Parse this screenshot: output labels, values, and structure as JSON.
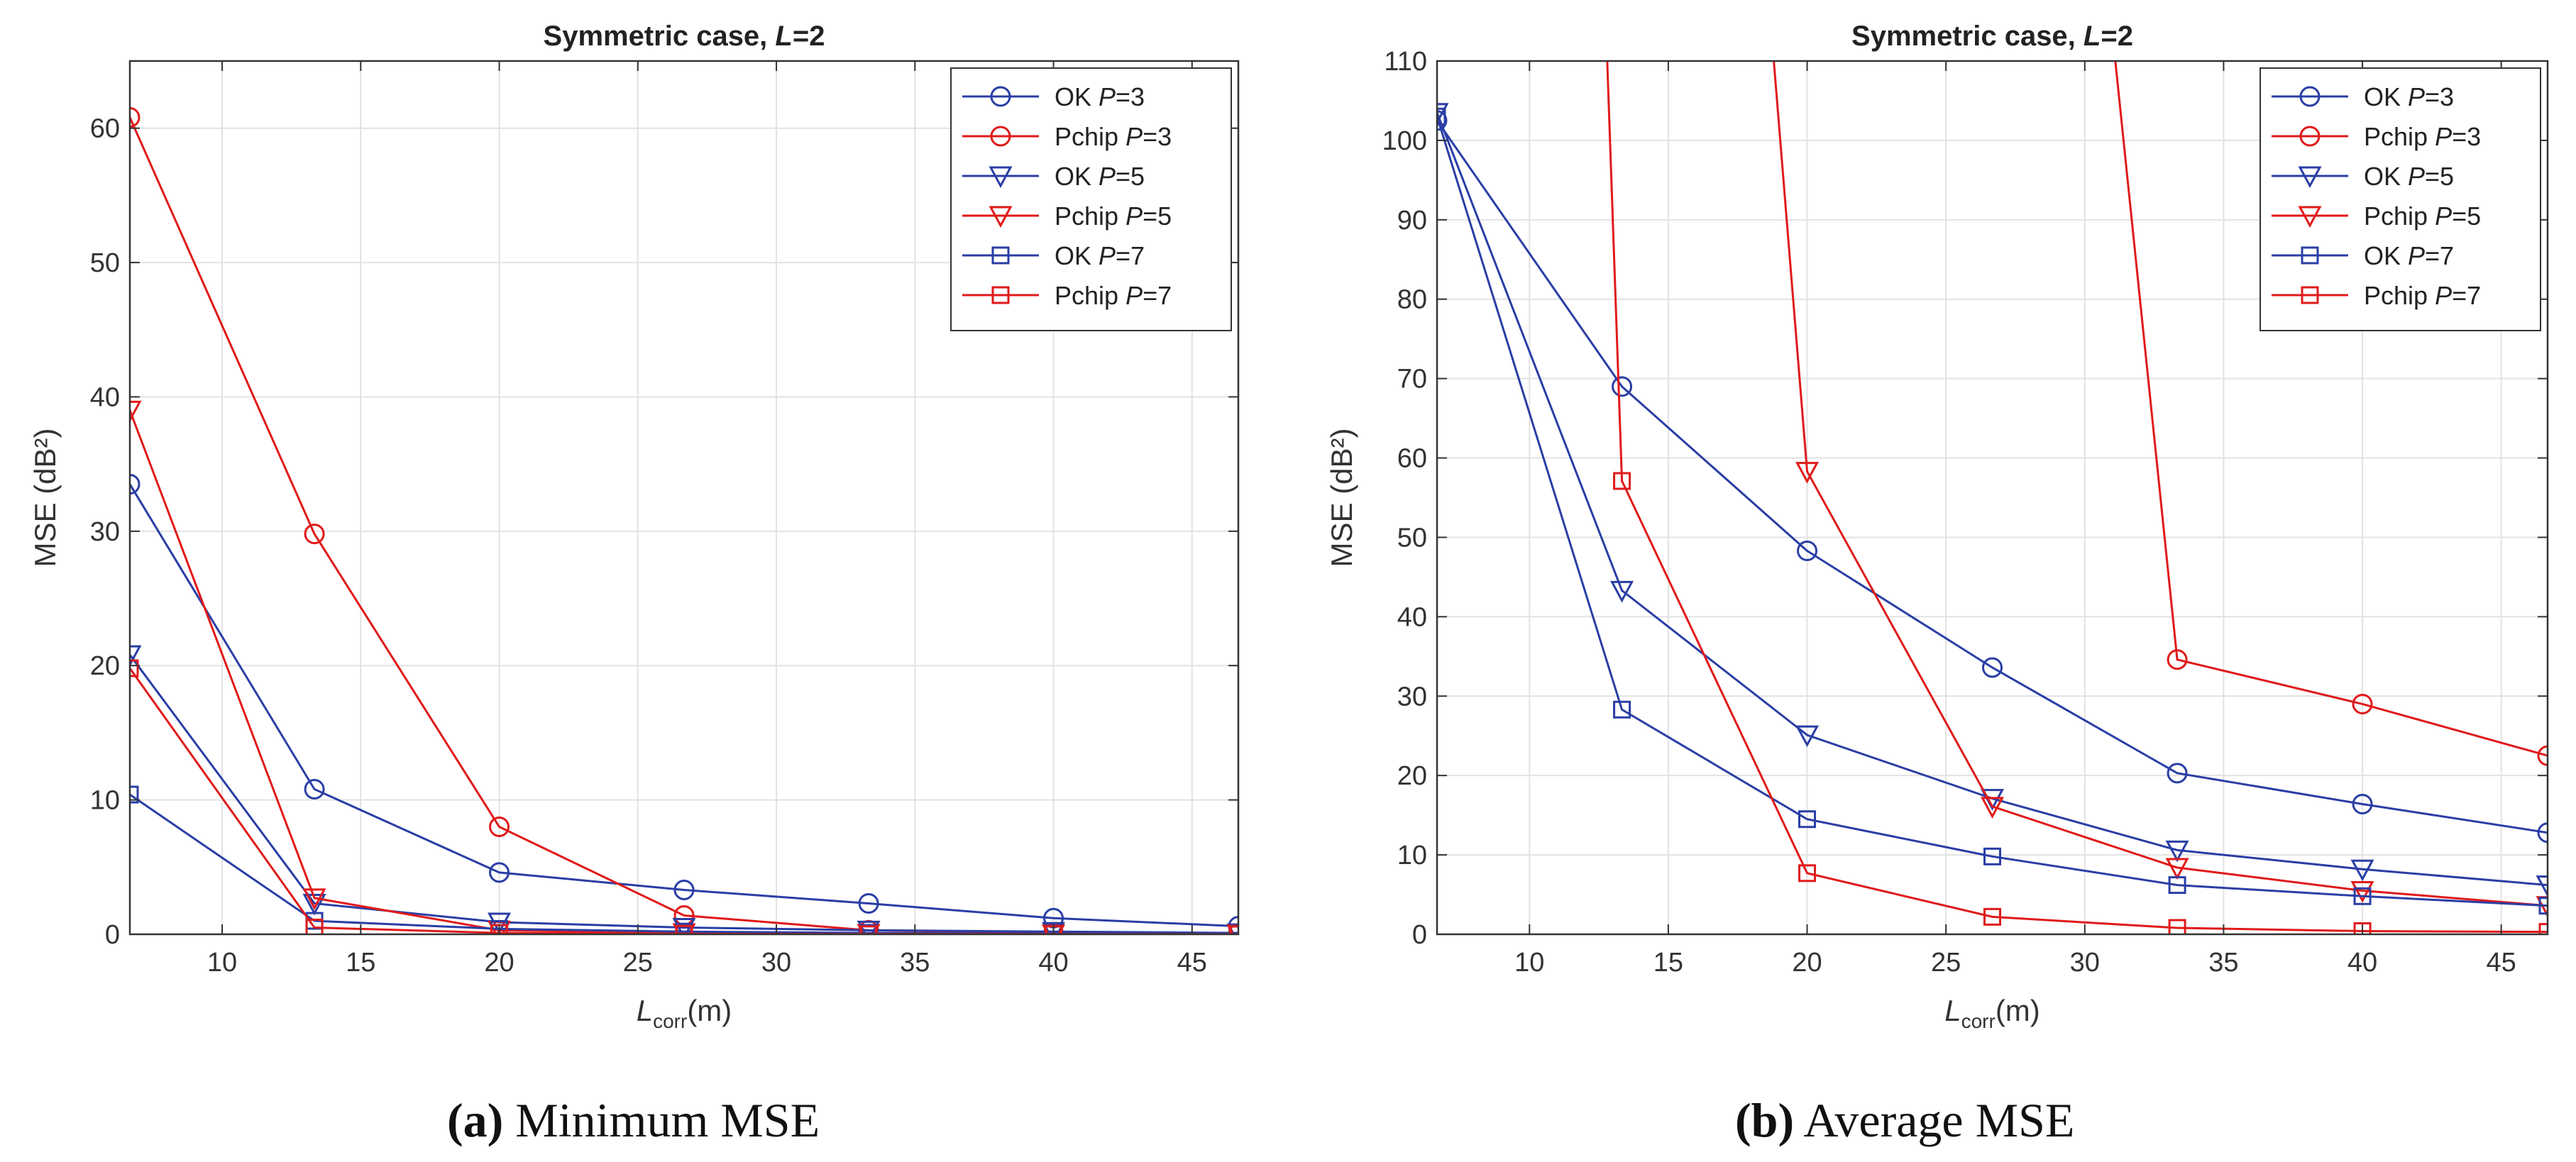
{
  "colors": {
    "ok": "#2a3ea5",
    "pchip": "#e01a1a",
    "grid": "#e2e2e2",
    "axis": "#333333"
  },
  "chart_data": [
    {
      "type": "line",
      "title": "Symmetric case, L=2",
      "title_parts": [
        "Symmetric case, ",
        "L",
        "=2"
      ],
      "xlabel": "L_corr(m)",
      "xlabel_parts": [
        "L",
        "corr",
        "(m)"
      ],
      "ylabel": "MSE (dB²)",
      "xlim": [
        6.67,
        46.67
      ],
      "ylim": [
        0,
        65
      ],
      "xticks": [
        10,
        15,
        20,
        25,
        30,
        35,
        40,
        45
      ],
      "yticks": [
        0,
        10,
        20,
        30,
        40,
        50,
        60
      ],
      "x": [
        6.67,
        13.33,
        20,
        26.67,
        33.33,
        40,
        46.67
      ],
      "legend_position": "top-right",
      "series": [
        {
          "name": "OK P=3",
          "name_parts": [
            "OK ",
            "P",
            "=3"
          ],
          "family": "ok",
          "marker": "circle",
          "values": [
            33.5,
            10.8,
            4.6,
            3.3,
            2.3,
            1.2,
            0.6
          ]
        },
        {
          "name": "Pchip P=3",
          "name_parts": [
            "Pchip ",
            "P",
            "=3"
          ],
          "family": "pchip",
          "marker": "circle",
          "values": [
            60.8,
            29.8,
            8.0,
            1.4,
            0.3,
            0.1,
            0.05
          ]
        },
        {
          "name": "OK P=5",
          "name_parts": [
            "OK ",
            "P",
            "=5"
          ],
          "family": "ok",
          "marker": "triangle",
          "values": [
            20.8,
            2.3,
            0.9,
            0.5,
            0.3,
            0.2,
            0.1
          ]
        },
        {
          "name": "Pchip P=5",
          "name_parts": [
            "Pchip ",
            "P",
            "=5"
          ],
          "family": "pchip",
          "marker": "triangle",
          "values": [
            39.0,
            2.7,
            0.3,
            0.1,
            0.05,
            0.02,
            0.01
          ]
        },
        {
          "name": "OK P=7",
          "name_parts": [
            "OK ",
            "P",
            "=7"
          ],
          "family": "ok",
          "marker": "square",
          "values": [
            10.4,
            1.0,
            0.4,
            0.2,
            0.1,
            0.05,
            0.03
          ]
        },
        {
          "name": "Pchip P=7",
          "name_parts": [
            "Pchip ",
            "P",
            "=7"
          ],
          "family": "pchip",
          "marker": "square",
          "values": [
            19.8,
            0.5,
            0.1,
            0.03,
            0.01,
            0.01,
            0.0
          ]
        }
      ]
    },
    {
      "type": "line",
      "title": "Symmetric case, L=2",
      "title_parts": [
        "Symmetric case, ",
        "L",
        "=2"
      ],
      "xlabel": "L_corr(m)",
      "xlabel_parts": [
        "L",
        "corr",
        "(m)"
      ],
      "ylabel": "MSE (dB²)",
      "xlim": [
        6.67,
        46.67
      ],
      "ylim": [
        0,
        110
      ],
      "xticks": [
        10,
        15,
        20,
        25,
        30,
        35,
        40,
        45
      ],
      "yticks": [
        0,
        10,
        20,
        30,
        40,
        50,
        60,
        70,
        80,
        90,
        100,
        110
      ],
      "x": [
        6.67,
        13.33,
        20,
        26.67,
        33.33,
        40,
        46.67
      ],
      "legend_position": "top-right",
      "series": [
        {
          "name": "OK P=3",
          "name_parts": [
            "OK ",
            "P",
            "=3"
          ],
          "family": "ok",
          "marker": "circle",
          "values": [
            102.5,
            69.0,
            48.3,
            33.6,
            20.3,
            16.4,
            12.8
          ]
        },
        {
          "name": "Pchip P=3",
          "name_parts": [
            "Pchip ",
            "P",
            "=3"
          ],
          "family": "pchip",
          "marker": "circle",
          "values": [
            null,
            null,
            null,
            null,
            34.6,
            29.0,
            22.5
          ],
          "entry": [
            31.1,
            110
          ]
        },
        {
          "name": "OK P=5",
          "name_parts": [
            "OK ",
            "P",
            "=5"
          ],
          "family": "ok",
          "marker": "triangle",
          "values": [
            103.5,
            43.3,
            25.1,
            17.1,
            10.6,
            8.2,
            6.2
          ]
        },
        {
          "name": "Pchip P=5",
          "name_parts": [
            "Pchip ",
            "P",
            "=5"
          ],
          "family": "pchip",
          "marker": "triangle",
          "values": [
            null,
            null,
            58.3,
            16.1,
            8.4,
            5.5,
            3.6
          ],
          "entry": [
            18.8,
            110
          ]
        },
        {
          "name": "OK P=7",
          "name_parts": [
            "OK ",
            "P",
            "=7"
          ],
          "family": "ok",
          "marker": "square",
          "values": [
            103.0,
            28.3,
            14.5,
            9.8,
            6.2,
            4.8,
            3.6
          ]
        },
        {
          "name": "Pchip P=7",
          "name_parts": [
            "Pchip ",
            "P",
            "=7"
          ],
          "family": "pchip",
          "marker": "square",
          "values": [
            null,
            57.1,
            7.7,
            2.2,
            0.8,
            0.4,
            0.3
          ],
          "entry": [
            12.8,
            110
          ]
        }
      ]
    }
  ],
  "captions": [
    {
      "label": "(a)",
      "text": "Minimum MSE"
    },
    {
      "label": "(b)",
      "text": "Average MSE"
    }
  ]
}
